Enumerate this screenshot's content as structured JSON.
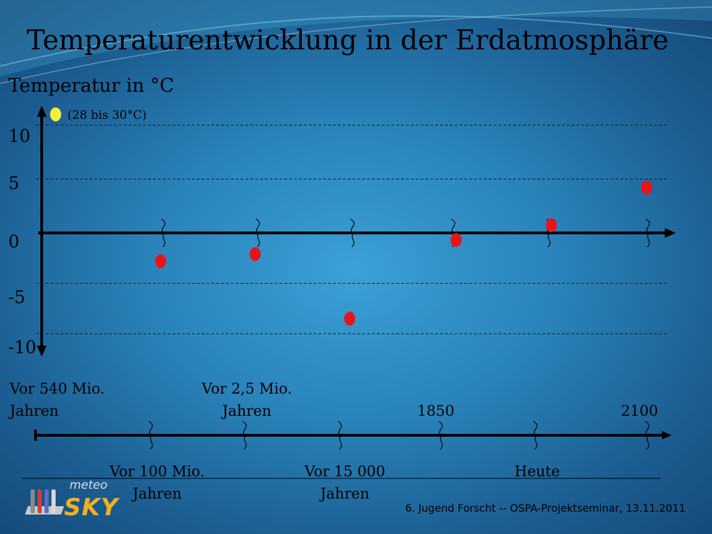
{
  "slide": {
    "title": "Temperaturentwicklung in der Erdatmosphäre",
    "note": "(28 bis 30°C)",
    "footer": "6. Jugend Forscht -- OSPA-Projektseminar, 13.11.2011",
    "logo": {
      "top": "meteo",
      "bottom": "SKY"
    },
    "colors": {
      "background": "#2a84bb",
      "marker": "#e8141b",
      "highlight_marker": "#f4f03a",
      "axis": "#000000"
    }
  },
  "chart_data": {
    "type": "scatter",
    "title": "Temperaturentwicklung in der Erdatmosphäre",
    "ylabel": "Temperatur in °C",
    "ylim": [
      -10,
      10
    ],
    "y_ticks": [
      "10",
      "5",
      "0",
      "-5",
      "-10"
    ],
    "grid": true,
    "grid_lines": [
      10,
      5,
      -5,
      -10
    ],
    "x_categories": [
      "Vor 540 Mio. Jahren",
      "Vor 100 Mio. Jahren",
      "Vor 2,5 Mio. Jahren",
      "Vor 15 000 Jahren",
      "1850",
      "Heute",
      "2100"
    ],
    "x_labels_top": [
      {
        "lines": [
          "Vor 540 Mio.",
          "Jahren"
        ]
      },
      {
        "lines": [
          "Vor 2,5 Mio.",
          "Jahren"
        ]
      },
      {
        "lines": [
          "1850"
        ]
      },
      {
        "lines": [
          "2100"
        ]
      }
    ],
    "x_labels_bottom": [
      {
        "lines": [
          "Vor 100 Mio.",
          "Jahren"
        ]
      },
      {
        "lines": [
          "Vor 15 000",
          "Jahren"
        ]
      },
      {
        "lines": [
          "Heute"
        ]
      }
    ],
    "points": [
      {
        "x": "Vor 540 Mio. Jahren",
        "y": 11,
        "note": "(28 bis 30°C)",
        "color": "#f4f03a"
      },
      {
        "x": "Vor 100 Mio. Jahren",
        "y": -2.8,
        "color": "#e8141b"
      },
      {
        "x": "Vor 2,5 Mio. Jahren",
        "y": -2.1,
        "color": "#e8141b"
      },
      {
        "x": "Vor 15 000 Jahren",
        "y": -8.5,
        "color": "#e8141b"
      },
      {
        "x": "1850",
        "y": -0.7,
        "color": "#e8141b"
      },
      {
        "x": "Heute",
        "y": 0.7,
        "color": "#e8141b"
      },
      {
        "x": "2100",
        "y": 4.2,
        "color": "#e8141b"
      }
    ]
  }
}
